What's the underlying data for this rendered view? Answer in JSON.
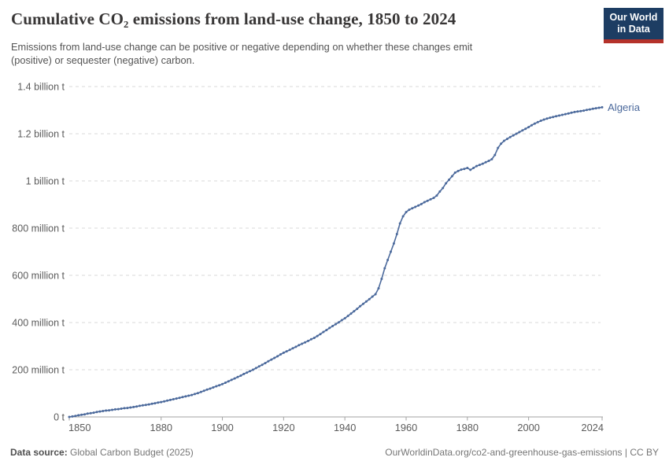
{
  "header": {
    "title": "Cumulative CO₂ emissions from land-use change, 1850 to 2024",
    "subtitle": "Emissions from land-use change can be positive or negative depending on whether these changes emit\n(positive) or sequester (negative) carbon.",
    "logo": {
      "line1": "Our World",
      "line2": "in Data"
    }
  },
  "footer": {
    "source_label": "Data source:",
    "source_value": " Global Carbon Budget (2025)",
    "attribution": "OurWorldinData.org/co2-and-greenhouse-gas-emissions | CC BY"
  },
  "colors": {
    "series": "#4c6a9c",
    "grid": "#d9d9d9",
    "axis": "#a3a3a3",
    "tick_label": "#5b5b5b",
    "logo_bg": "#1d3d63",
    "logo_red": "#b5322a"
  },
  "chart_data": {
    "type": "line",
    "title": "Cumulative CO₂ emissions from land-use change, 1850 to 2024",
    "xlabel": "",
    "ylabel": "",
    "unit": "tonnes",
    "values_unit": "million tonnes",
    "grid": true,
    "xlim": [
      1850,
      2024
    ],
    "ylim": [
      0,
      1400
    ],
    "x_ticks": [
      1850,
      1880,
      1900,
      1920,
      1940,
      1960,
      1980,
      2000,
      2024
    ],
    "y_ticks": [
      {
        "value": 0,
        "label": "0 t"
      },
      {
        "value": 200,
        "label": "200 million t"
      },
      {
        "value": 400,
        "label": "400 million t"
      },
      {
        "value": 600,
        "label": "600 million t"
      },
      {
        "value": 800,
        "label": "800 million t"
      },
      {
        "value": 1000,
        "label": "1 billion t"
      },
      {
        "value": 1200,
        "label": "1.2 billion t"
      },
      {
        "value": 1400,
        "label": "1.4 billion t"
      }
    ],
    "x_start": 1850,
    "x_step": 1,
    "series": [
      {
        "name": "Algeria",
        "end_label": "Algeria",
        "values_million_t": [
          0,
          2,
          4,
          7,
          9,
          11,
          14,
          16,
          18,
          21,
          23,
          25,
          27,
          28,
          30,
          32,
          33,
          35,
          37,
          38,
          40,
          42,
          44,
          47,
          49,
          51,
          53,
          56,
          58,
          61,
          63,
          66,
          69,
          72,
          75,
          78,
          81,
          84,
          87,
          90,
          93,
          97,
          101,
          106,
          111,
          116,
          120,
          125,
          130,
          134,
          139,
          145,
          151,
          157,
          163,
          169,
          175,
          182,
          188,
          194,
          200,
          207,
          214,
          221,
          228,
          236,
          243,
          250,
          257,
          265,
          272,
          278,
          284,
          291,
          297,
          304,
          310,
          316,
          322,
          329,
          335,
          343,
          351,
          360,
          368,
          377,
          385,
          393,
          401,
          410,
          418,
          428,
          438,
          448,
          458,
          469,
          479,
          489,
          499,
          510,
          520,
          545,
          585,
          630,
          665,
          700,
          735,
          775,
          820,
          850,
          868,
          878,
          884,
          890,
          896,
          902,
          910,
          916,
          922,
          928,
          938,
          955,
          970,
          990,
          1005,
          1020,
          1035,
          1042,
          1048,
          1051,
          1055,
          1047,
          1055,
          1063,
          1068,
          1073,
          1079,
          1085,
          1092,
          1110,
          1140,
          1158,
          1170,
          1178,
          1186,
          1193,
          1200,
          1207,
          1214,
          1221,
          1228,
          1236,
          1243,
          1249,
          1255,
          1260,
          1264,
          1268,
          1271,
          1274,
          1277,
          1280,
          1283,
          1286,
          1289,
          1292,
          1294,
          1296,
          1298,
          1301,
          1303,
          1306,
          1308,
          1310,
          1312
        ]
      }
    ],
    "legend_position": "end-of-line-label"
  }
}
